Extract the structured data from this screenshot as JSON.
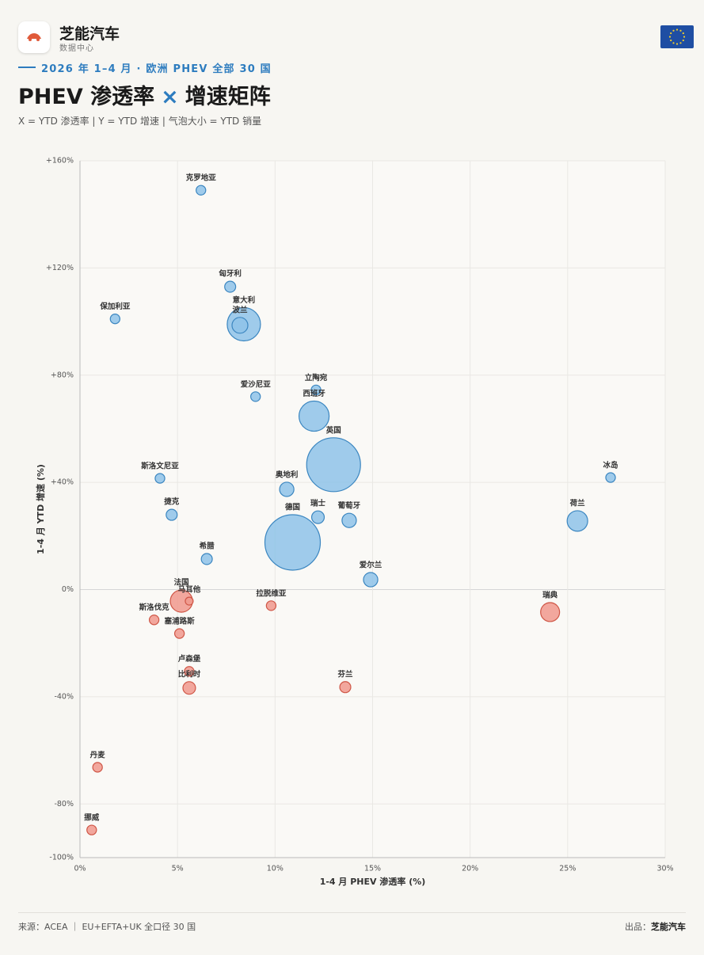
{
  "header": {
    "brand": "芝能汽车",
    "center": "数据中心",
    "kicker": "2026 年 1–4 月 · 欧洲 PHEV 全部 30 国",
    "title_left": "PHEV 渗透率",
    "title_mid": "×",
    "title_right": "增速矩阵",
    "subtitle": "X = YTD 渗透率  |  Y = YTD 增速  |  气泡大小 = YTD 销量"
  },
  "chart_data": {
    "type": "bubble",
    "x_label": "1-4 月 PHEV 渗透率 (%)",
    "y_label": "1-4 月 YTD 增速 (%)",
    "xlim": [
      0,
      30
    ],
    "ylim": [
      -100,
      160
    ],
    "xticks": [
      {
        "value": 0,
        "label": "0%"
      },
      {
        "value": 5,
        "label": "5%"
      },
      {
        "value": 10,
        "label": "10%"
      },
      {
        "value": 15,
        "label": "15%"
      },
      {
        "value": 20,
        "label": "20%"
      },
      {
        "value": 25,
        "label": "25%"
      },
      {
        "value": 30,
        "label": "30%"
      }
    ],
    "yticks": [
      {
        "value": -100,
        "label": "-100%"
      },
      {
        "value": -80,
        "label": "-80%"
      },
      {
        "value": -40,
        "label": "-40%"
      },
      {
        "value": 0,
        "label": "0%"
      },
      {
        "value": 40,
        "label": "+40%"
      },
      {
        "value": 80,
        "label": "+80%"
      },
      {
        "value": 120,
        "label": "+120%"
      },
      {
        "value": 160,
        "label": "+160%"
      }
    ],
    "grid": true,
    "colors": {
      "positive": "#8ec3e9",
      "positive_edge": "#3b86c0",
      "negative": "#f0998d",
      "negative_edge": "#cf5646"
    },
    "points": [
      {
        "name": "克罗地亚",
        "x": 6.2,
        "y": 149,
        "size": 2200
      },
      {
        "name": "匈牙利",
        "x": 7.7,
        "y": 113,
        "size": 2900
      },
      {
        "name": "保加利亚",
        "x": 1.8,
        "y": 101,
        "size": 2200
      },
      {
        "name": "意大利",
        "x": 8.4,
        "y": 99,
        "size": 26500
      },
      {
        "name": "波兰",
        "x": 8.2,
        "y": 98.6,
        "size": 6000
      },
      {
        "name": "爱沙尼亚",
        "x": 9.0,
        "y": 72,
        "size": 2200
      },
      {
        "name": "立陶宛",
        "x": 12.1,
        "y": 74.5,
        "size": 2200
      },
      {
        "name": "西班牙",
        "x": 12.0,
        "y": 64.7,
        "size": 21700
      },
      {
        "name": "英国",
        "x": 13.0,
        "y": 46.6,
        "size": 69400
      },
      {
        "name": "斯洛文尼亚",
        "x": 4.1,
        "y": 41.5,
        "size": 2200
      },
      {
        "name": "冰岛",
        "x": 27.2,
        "y": 41.8,
        "size": 2200
      },
      {
        "name": "奥地利",
        "x": 10.6,
        "y": 37.4,
        "size": 4900
      },
      {
        "name": "捷克",
        "x": 4.7,
        "y": 27.9,
        "size": 2900
      },
      {
        "name": "瑞士",
        "x": 12.2,
        "y": 27.0,
        "size": 3800
      },
      {
        "name": "葡萄牙",
        "x": 13.8,
        "y": 25.8,
        "size": 4900
      },
      {
        "name": "荷兰",
        "x": 25.5,
        "y": 25.6,
        "size": 10100
      },
      {
        "name": "德国",
        "x": 10.9,
        "y": 17.6,
        "size": 73500
      },
      {
        "name": "希腊",
        "x": 6.5,
        "y": 11.4,
        "size": 2900
      },
      {
        "name": "爱尔兰",
        "x": 14.9,
        "y": 3.7,
        "size": 4900
      },
      {
        "name": "法国",
        "x": 5.2,
        "y": -4.3,
        "size": 11800
      },
      {
        "name": "马耳他",
        "x": 5.6,
        "y": -4.3,
        "size": 1500
      },
      {
        "name": "拉脱维亚",
        "x": 9.8,
        "y": -6.0,
        "size": 2200
      },
      {
        "name": "瑞典",
        "x": 24.1,
        "y": -8.4,
        "size": 8600
      },
      {
        "name": "斯洛伐克",
        "x": 3.8,
        "y": -11.3,
        "size": 2200
      },
      {
        "name": "塞浦路斯",
        "x": 5.1,
        "y": -16.4,
        "size": 2200
      },
      {
        "name": "卢森堡",
        "x": 5.6,
        "y": -30.5,
        "size": 2200
      },
      {
        "name": "比利时",
        "x": 5.6,
        "y": -36.7,
        "size": 3800
      },
      {
        "name": "芬兰",
        "x": 13.6,
        "y": -36.4,
        "size": 2900
      },
      {
        "name": "丹麦",
        "x": 0.9,
        "y": -66.3,
        "size": 2200
      },
      {
        "name": "挪威",
        "x": 0.6,
        "y": -89.7,
        "size": 2200
      }
    ]
  },
  "footer": {
    "source": "来源：ACEA ｜ EU+EFTA+UK 全口径 30 国",
    "maker_prefix": "出品：",
    "maker": "芝能汽车"
  }
}
